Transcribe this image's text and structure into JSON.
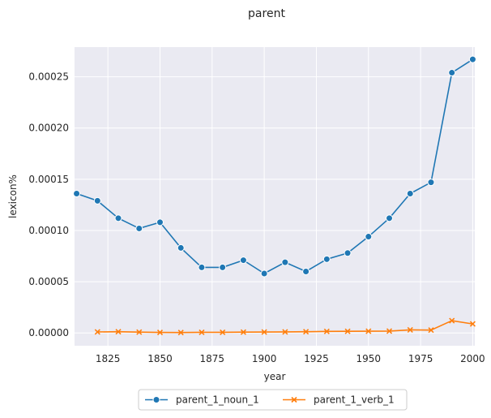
{
  "chart_data": {
    "type": "line",
    "title": "parent",
    "xlabel": "year",
    "ylabel": "lexicon%",
    "x": [
      1810,
      1820,
      1830,
      1840,
      1850,
      1860,
      1870,
      1880,
      1890,
      1900,
      1910,
      1920,
      1930,
      1940,
      1950,
      1960,
      1970,
      1980,
      1990,
      2000
    ],
    "series": [
      {
        "name": "parent_1_noun_1",
        "color": "#1f77b4",
        "marker": "circle",
        "x": [
          1810,
          1820,
          1830,
          1840,
          1850,
          1860,
          1870,
          1880,
          1890,
          1900,
          1910,
          1920,
          1930,
          1940,
          1950,
          1960,
          1970,
          1980,
          1990,
          2000
        ],
        "values": [
          0.000136,
          0.000129,
          0.000112,
          0.000102,
          0.000108,
          8.3e-05,
          6.4e-05,
          6.4e-05,
          7.1e-05,
          5.8e-05,
          6.9e-05,
          6e-05,
          7.2e-05,
          7.8e-05,
          9.4e-05,
          0.000112,
          0.000136,
          0.000147,
          0.000254,
          0.000267
        ]
      },
      {
        "name": "parent_1_verb_1",
        "color": "#ff7f0e",
        "marker": "x",
        "x": [
          1820,
          1830,
          1840,
          1850,
          1860,
          1870,
          1880,
          1890,
          1900,
          1910,
          1920,
          1930,
          1940,
          1950,
          1960,
          1970,
          1980,
          1990,
          2000
        ],
        "values": [
          1e-06,
          1.2e-06,
          8e-07,
          5e-07,
          4e-07,
          6e-07,
          6e-07,
          8e-07,
          9e-07,
          1e-06,
          1.2e-06,
          1.5e-06,
          1.6e-06,
          1.7e-06,
          1.8e-06,
          3e-06,
          2.8e-06,
          1.2e-05,
          8.8e-06
        ]
      }
    ],
    "xlim": [
      1809,
      2001
    ],
    "ylim": [
      -1.25e-05,
      0.000279
    ],
    "xticks": [
      1825,
      1850,
      1875,
      1900,
      1925,
      1950,
      1975,
      2000
    ],
    "xtick_labels": [
      "1825",
      "1850",
      "1875",
      "1900",
      "1925",
      "1950",
      "1975",
      "2000"
    ],
    "yticks": [
      0,
      5e-05,
      0.0001,
      0.00015,
      0.0002,
      0.00025
    ],
    "ytick_labels": [
      "0.00000",
      "0.00005",
      "0.00010",
      "0.00015",
      "0.00020",
      "0.00025"
    ],
    "grid": true,
    "legend_position": "bottom-center"
  }
}
